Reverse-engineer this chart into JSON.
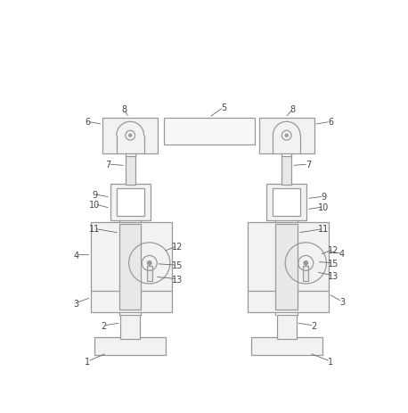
{
  "bg_color": "#ffffff",
  "line_color": "#999999",
  "fill_color": "#f2f2f2",
  "fill_inner": "#e8e8e8",
  "label_color": "#444444",
  "fig_width": 4.58,
  "fig_height": 4.64,
  "dpi": 100,
  "lw": 0.9,
  "fs": 7.0
}
